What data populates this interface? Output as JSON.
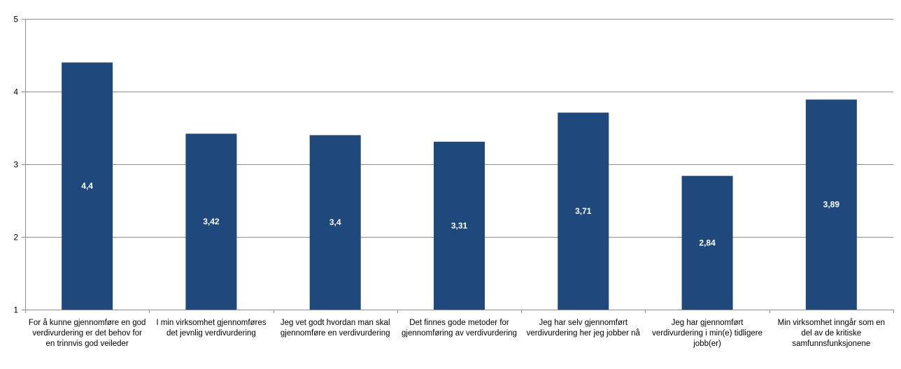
{
  "chart_data": {
    "type": "bar",
    "categories": [
      "For å kunne gjennomføre en god verdivurdering er det behov for en trinnvis god veileder",
      "I min virksomhet gjennomføres det jevnlig verdivurdering",
      "Jeg vet godt hvordan man skal gjennomføre en verdivurdering",
      "Det finnes gode metoder for gjennomføring av verdivurdering",
      "Jeg har selv gjennomført verdivurdering her jeg jobber nå",
      "Jeg har gjennomført verdivurdering i min(e) tidligere jobb(er)",
      "Min virksomhet inngår som en del av de kritiske samfunnsfunksjonene"
    ],
    "values": [
      4.4,
      3.42,
      3.4,
      3.31,
      3.71,
      2.84,
      3.89
    ],
    "data_labels": [
      "4,4",
      "3,42",
      "3,4",
      "3,31",
      "3,71",
      "2,84",
      "3,89"
    ],
    "ylim": [
      1,
      5
    ],
    "yticks": [
      "1",
      "2",
      "3",
      "4",
      "5"
    ],
    "grid": true,
    "title": "",
    "xlabel": "",
    "ylabel": "",
    "colors": {
      "bar": "#1F497D",
      "grid": "#8C8C8C",
      "axis": "#8C8C8C",
      "label": "#FFFFFF"
    }
  }
}
